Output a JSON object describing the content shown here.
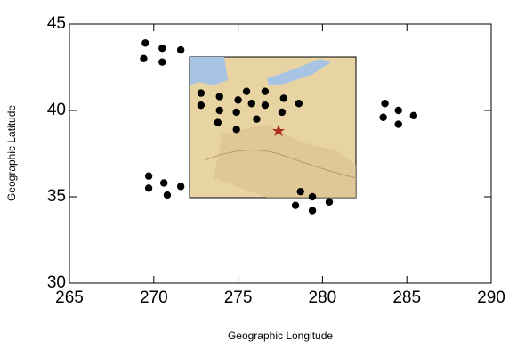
{
  "chart_data": {
    "type": "scatter",
    "xlabel": "Geographic Longitude",
    "ylabel": "Geographic Latitude",
    "xlim": [
      265,
      290
    ],
    "ylim": [
      30,
      45
    ],
    "xticks": [
      265,
      270,
      275,
      280,
      285,
      290
    ],
    "yticks": [
      30,
      35,
      40,
      45
    ],
    "color": "#000000",
    "x": [
      269.5,
      269.4,
      270.5,
      270.5,
      271.6,
      272.8,
      272.8,
      273.9,
      273.9,
      273.8,
      275.0,
      274.9,
      275.5,
      275.8,
      274.9,
      276.6,
      276.1,
      276.6,
      277.7,
      277.6,
      278.6,
      283.7,
      283.6,
      284.5,
      284.5,
      285.4,
      269.7,
      269.7,
      270.6,
      270.8,
      271.6,
      278.7,
      278.4,
      279.4,
      279.4,
      280.4
    ],
    "y": [
      43.9,
      43.0,
      43.6,
      42.8,
      43.5,
      41.0,
      40.3,
      40.8,
      40.0,
      39.3,
      40.6,
      39.9,
      41.1,
      40.4,
      38.9,
      40.3,
      39.5,
      41.1,
      40.7,
      39.9,
      40.4,
      40.4,
      39.6,
      40.0,
      39.2,
      39.7,
      36.2,
      35.5,
      35.8,
      35.1,
      35.6,
      35.3,
      34.5,
      35.0,
      34.2,
      34.7
    ]
  }
}
